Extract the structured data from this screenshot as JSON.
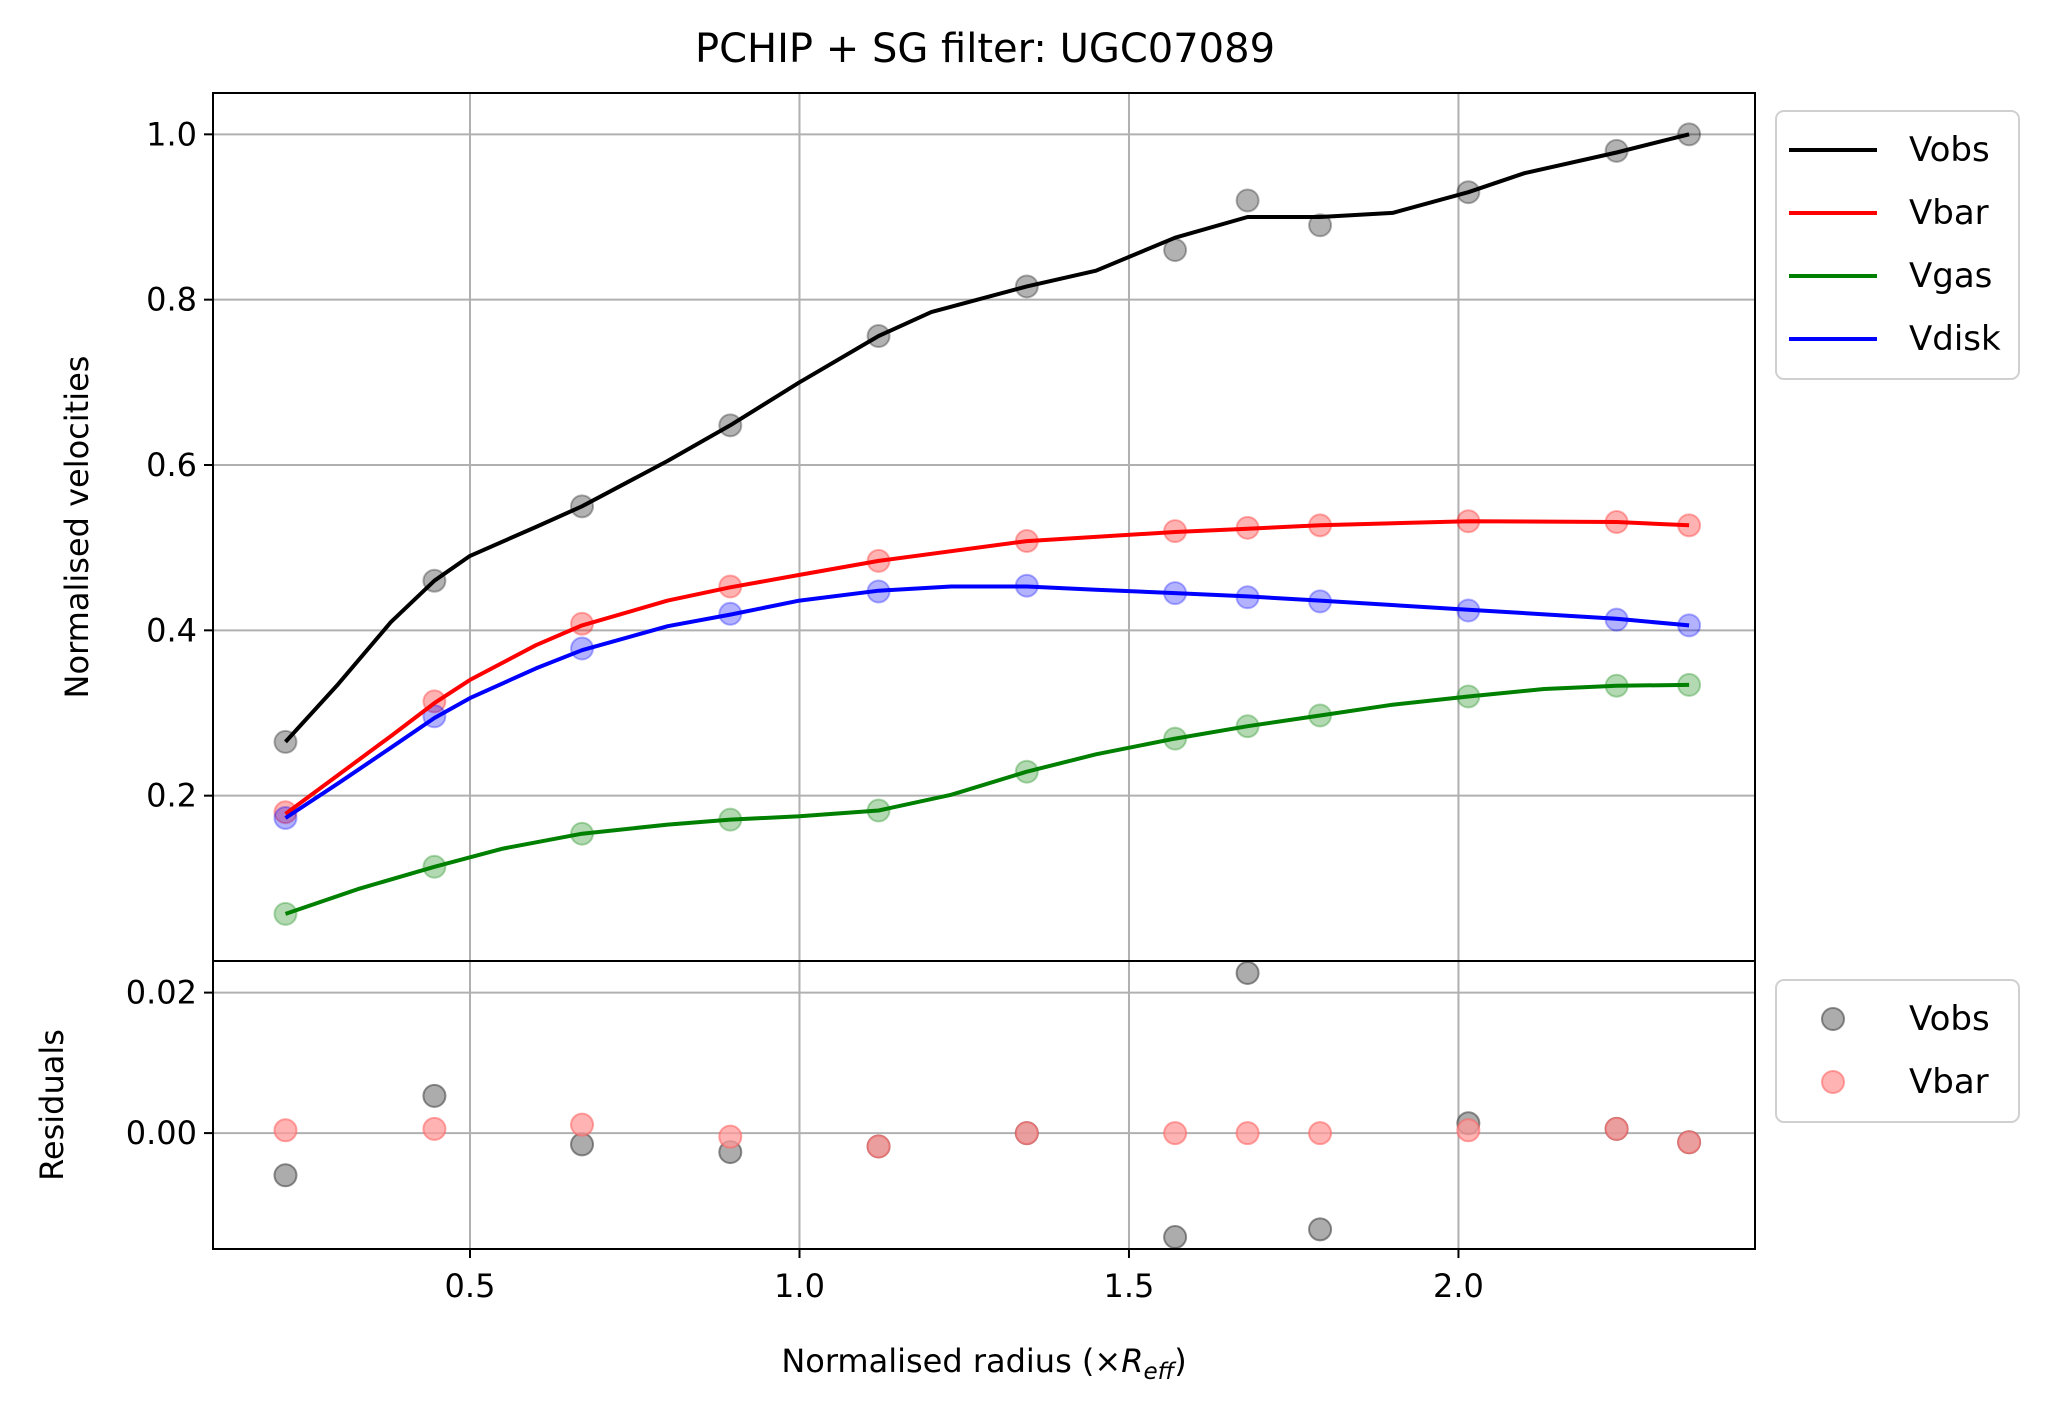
{
  "chart_data": {
    "type": "line",
    "title": "PCHIP + SG filter: UGC07089",
    "xlabel_main": "Normalised radius (×",
    "xlabel_symbol": "R",
    "xlabel_sub": "eff",
    "xlabel_close": ")",
    "xlim": [
      0.11,
      2.45
    ],
    "x_ticks": [
      "0.5",
      "1.0",
      "1.5",
      "2.0"
    ],
    "x_tick_values": [
      0.5,
      1.0,
      1.5,
      2.0
    ],
    "grid": true,
    "top_panel": {
      "ylabel": "Normalised velocities",
      "ylim": [
        0.0,
        1.05
      ],
      "y_ticks": [
        "0.2",
        "0.4",
        "0.6",
        "0.8",
        "1.0"
      ],
      "y_tick_values": [
        0.2,
        0.4,
        0.6,
        0.8,
        1.0
      ],
      "legend_position": "outside upper right",
      "series": [
        {
          "name": "Vobs",
          "color": "#000000",
          "x": [
            0.22,
            0.446,
            0.67,
            0.895,
            1.12,
            1.345,
            1.57,
            1.68,
            1.79,
            2.015,
            2.24,
            2.35
          ],
          "points": [
            0.265,
            0.46,
            0.55,
            0.648,
            0.756,
            0.816,
            0.86,
            0.92,
            0.89,
            0.93,
            0.98,
            1.0
          ],
          "curve_x": [
            0.22,
            0.3,
            0.38,
            0.446,
            0.5,
            0.6,
            0.67,
            0.8,
            0.895,
            1.0,
            1.12,
            1.2,
            1.345,
            1.45,
            1.57,
            1.68,
            1.79,
            1.9,
            2.015,
            2.1,
            2.24,
            2.35
          ],
          "curve": [
            0.265,
            0.335,
            0.41,
            0.46,
            0.49,
            0.525,
            0.55,
            0.605,
            0.648,
            0.7,
            0.756,
            0.785,
            0.816,
            0.835,
            0.875,
            0.9,
            0.9,
            0.905,
            0.93,
            0.953,
            0.978,
            1.0
          ]
        },
        {
          "name": "Vbar",
          "color": "#ff0000",
          "x": [
            0.22,
            0.446,
            0.67,
            0.895,
            1.12,
            1.345,
            1.57,
            1.68,
            1.79,
            2.015,
            2.24,
            2.35
          ],
          "points": [
            0.18,
            0.314,
            0.408,
            0.453,
            0.484,
            0.508,
            0.52,
            0.524,
            0.527,
            0.532,
            0.531,
            0.527
          ],
          "curve_x": [
            0.22,
            0.3,
            0.38,
            0.446,
            0.5,
            0.6,
            0.67,
            0.8,
            0.895,
            1.0,
            1.12,
            1.345,
            1.57,
            1.68,
            1.79,
            2.015,
            2.24,
            2.35
          ],
          "curve": [
            0.178,
            0.225,
            0.272,
            0.312,
            0.34,
            0.382,
            0.406,
            0.436,
            0.452,
            0.467,
            0.484,
            0.508,
            0.519,
            0.523,
            0.527,
            0.532,
            0.531,
            0.527
          ]
        },
        {
          "name": "Vgas",
          "color": "#008000",
          "x": [
            0.22,
            0.446,
            0.67,
            0.895,
            1.12,
            1.345,
            1.57,
            1.68,
            1.79,
            2.015,
            2.24,
            2.35
          ],
          "points": [
            0.057,
            0.114,
            0.154,
            0.171,
            0.182,
            0.229,
            0.269,
            0.284,
            0.297,
            0.32,
            0.333,
            0.334
          ],
          "curve_x": [
            0.22,
            0.33,
            0.446,
            0.55,
            0.67,
            0.8,
            0.895,
            1.0,
            1.12,
            1.23,
            1.345,
            1.45,
            1.57,
            1.68,
            1.79,
            1.9,
            2.015,
            2.13,
            2.24,
            2.35
          ],
          "curve": [
            0.057,
            0.087,
            0.114,
            0.136,
            0.154,
            0.165,
            0.171,
            0.175,
            0.182,
            0.201,
            0.229,
            0.25,
            0.269,
            0.284,
            0.297,
            0.31,
            0.32,
            0.329,
            0.333,
            0.334
          ]
        },
        {
          "name": "Vdisk",
          "color": "#0000ff",
          "x": [
            0.22,
            0.446,
            0.67,
            0.895,
            1.12,
            1.345,
            1.57,
            1.68,
            1.79,
            2.015,
            2.24,
            2.35
          ],
          "points": [
            0.173,
            0.296,
            0.378,
            0.42,
            0.447,
            0.454,
            0.445,
            0.44,
            0.435,
            0.424,
            0.413,
            0.406
          ],
          "curve_x": [
            0.22,
            0.3,
            0.38,
            0.446,
            0.5,
            0.6,
            0.67,
            0.8,
            0.895,
            1.0,
            1.12,
            1.23,
            1.345,
            1.45,
            1.57,
            1.68,
            1.79,
            2.015,
            2.24,
            2.35
          ],
          "curve": [
            0.173,
            0.215,
            0.258,
            0.294,
            0.318,
            0.354,
            0.376,
            0.405,
            0.419,
            0.436,
            0.448,
            0.453,
            0.453,
            0.449,
            0.445,
            0.441,
            0.436,
            0.425,
            0.414,
            0.406
          ]
        }
      ]
    },
    "residual_panel": {
      "ylabel": "Residuals",
      "ylim": [
        -0.0165,
        0.0245
      ],
      "y_ticks": [
        "0.00",
        "0.02"
      ],
      "y_tick_values": [
        0.0,
        0.02
      ],
      "legend_position": "outside upper right",
      "series": [
        {
          "name": "Vobs",
          "color": "#808080",
          "x": [
            0.22,
            0.446,
            0.67,
            0.895,
            1.12,
            1.345,
            1.57,
            1.68,
            1.79,
            2.015,
            2.24,
            2.35
          ],
          "values": [
            -0.006,
            0.0053,
            -0.0016,
            -0.0027,
            -0.0019,
            0.0,
            -0.0148,
            0.0228,
            -0.0137,
            0.0014,
            0.0006,
            -0.0013
          ]
        },
        {
          "name": "Vbar",
          "color": "#ff9999",
          "x": [
            0.22,
            0.446,
            0.67,
            0.895,
            1.12,
            1.345,
            1.57,
            1.68,
            1.79,
            2.015,
            2.24,
            2.35
          ],
          "values": [
            0.0004,
            0.0006,
            0.0012,
            -0.0005,
            -0.0019,
            0.0,
            0.0,
            0.0,
            0.0,
            0.0004,
            0.0006,
            -0.0013
          ]
        }
      ]
    }
  }
}
